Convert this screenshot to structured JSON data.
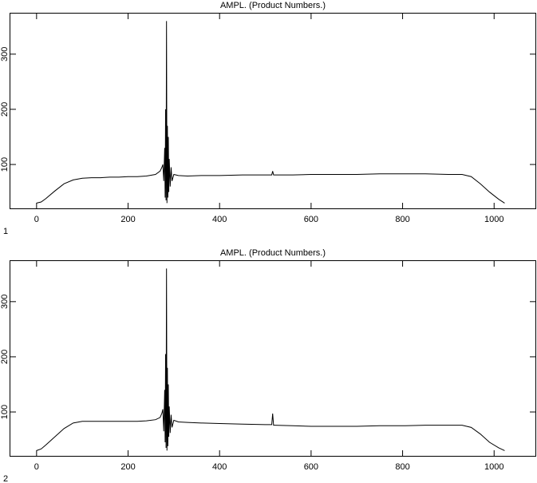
{
  "chart_data": [
    {
      "type": "line",
      "title": "AMPL.  (Product Numbers.)",
      "label": "1",
      "color": "#000000",
      "xlim": [
        -59,
        1092
      ],
      "ylim": [
        19,
        375
      ],
      "xticks": [
        0,
        200,
        400,
        600,
        800,
        1000
      ],
      "yticks": [
        100,
        200,
        300
      ],
      "x": [
        0,
        10,
        20,
        40,
        60,
        80,
        100,
        120,
        140,
        160,
        180,
        200,
        220,
        240,
        260,
        270,
        274,
        276,
        278,
        280,
        281,
        282,
        283,
        284,
        285,
        286,
        287,
        288,
        289,
        290,
        292,
        294,
        296,
        300,
        310,
        330,
        360,
        400,
        450,
        500,
        512,
        514,
        516,
        518,
        520,
        560,
        600,
        650,
        700,
        750,
        800,
        850,
        900,
        930,
        950,
        970,
        990,
        1010,
        1023
      ],
      "values": [
        30,
        32,
        38,
        52,
        65,
        72,
        75,
        76,
        76,
        77,
        77,
        78,
        78,
        79,
        82,
        88,
        95,
        100,
        70,
        130,
        40,
        200,
        35,
        360,
        30,
        170,
        40,
        150,
        50,
        110,
        60,
        95,
        70,
        82,
        80,
        79,
        80,
        80,
        81,
        81,
        81,
        81,
        88,
        81,
        81,
        81,
        82,
        82,
        82,
        83,
        83,
        83,
        82,
        82,
        78,
        65,
        50,
        37,
        30
      ]
    },
    {
      "type": "line",
      "title": "AMPL.  (Product Numbers.)",
      "label": "2",
      "color": "#000000",
      "xlim": [
        -59,
        1092
      ],
      "ylim": [
        19,
        375
      ],
      "xticks": [
        0,
        200,
        400,
        600,
        800,
        1000
      ],
      "yticks": [
        100,
        200,
        300
      ],
      "x": [
        0,
        10,
        20,
        40,
        60,
        80,
        100,
        120,
        140,
        160,
        180,
        200,
        220,
        240,
        260,
        270,
        274,
        276,
        278,
        280,
        281,
        282,
        283,
        284,
        285,
        286,
        287,
        288,
        289,
        290,
        292,
        294,
        296,
        300,
        310,
        330,
        360,
        400,
        450,
        500,
        512,
        514,
        516,
        518,
        520,
        560,
        600,
        650,
        700,
        750,
        800,
        850,
        900,
        930,
        950,
        970,
        990,
        1010,
        1023
      ],
      "values": [
        30,
        33,
        40,
        55,
        70,
        80,
        83,
        83,
        83,
        83,
        83,
        83,
        83,
        84,
        86,
        90,
        98,
        105,
        65,
        140,
        45,
        205,
        35,
        360,
        30,
        180,
        38,
        150,
        55,
        110,
        62,
        95,
        72,
        85,
        82,
        81,
        80,
        79,
        78,
        77,
        77,
        77,
        97,
        76,
        76,
        75,
        74,
        74,
        74,
        75,
        75,
        76,
        76,
        76,
        72,
        60,
        45,
        35,
        30
      ]
    }
  ]
}
